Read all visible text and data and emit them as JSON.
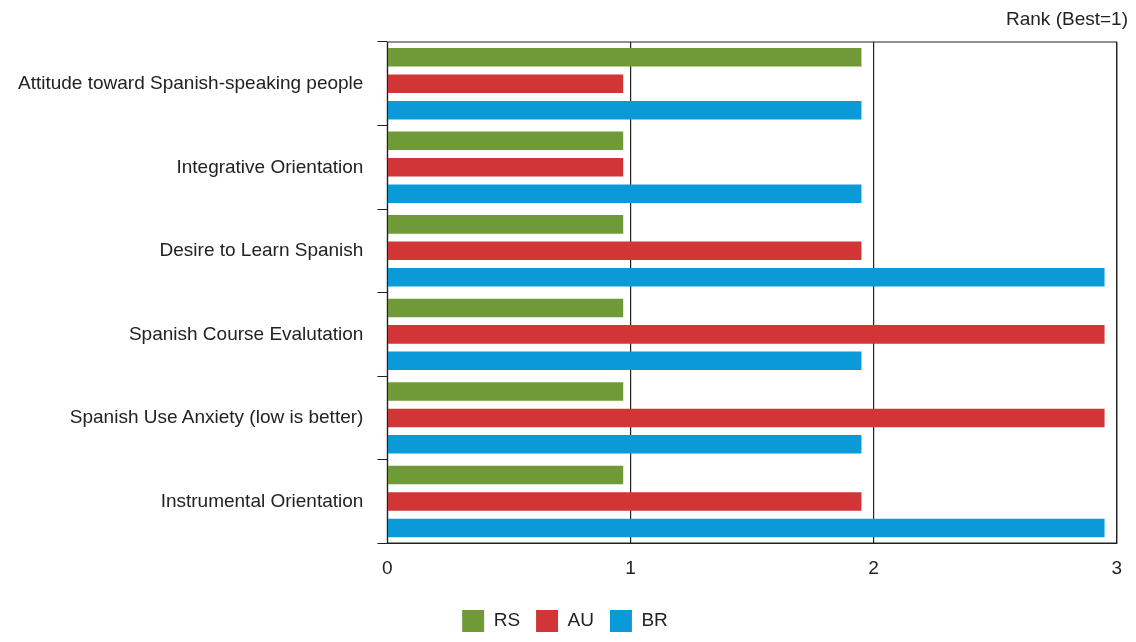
{
  "chart_data": {
    "type": "bar",
    "orientation": "horizontal",
    "xlabel": "Rank (Best=1)",
    "categories": [
      "Attitude toward Spanish-speaking people",
      "Integrative Orientation",
      "Desire to Learn Spanish",
      "Spanish Course Evalutation",
      "Spanish Use Anxiety (low is better)",
      "Instrumental Orientation"
    ],
    "series": [
      {
        "name": "RS",
        "color": "#6f9a37",
        "values": [
          1.95,
          0.97,
          0.97,
          0.97,
          0.97,
          0.97
        ]
      },
      {
        "name": "AU",
        "color": "#d13535",
        "values": [
          0.97,
          0.97,
          1.95,
          2.95,
          2.95,
          1.95
        ]
      },
      {
        "name": "BR",
        "color": "#0a9ad8",
        "values": [
          1.95,
          1.95,
          2.95,
          1.95,
          1.95,
          2.95
        ]
      }
    ],
    "xlim": [
      0,
      3
    ],
    "xticks": [
      0,
      1,
      2,
      3
    ],
    "grid": "x",
    "legend": "bottom"
  }
}
